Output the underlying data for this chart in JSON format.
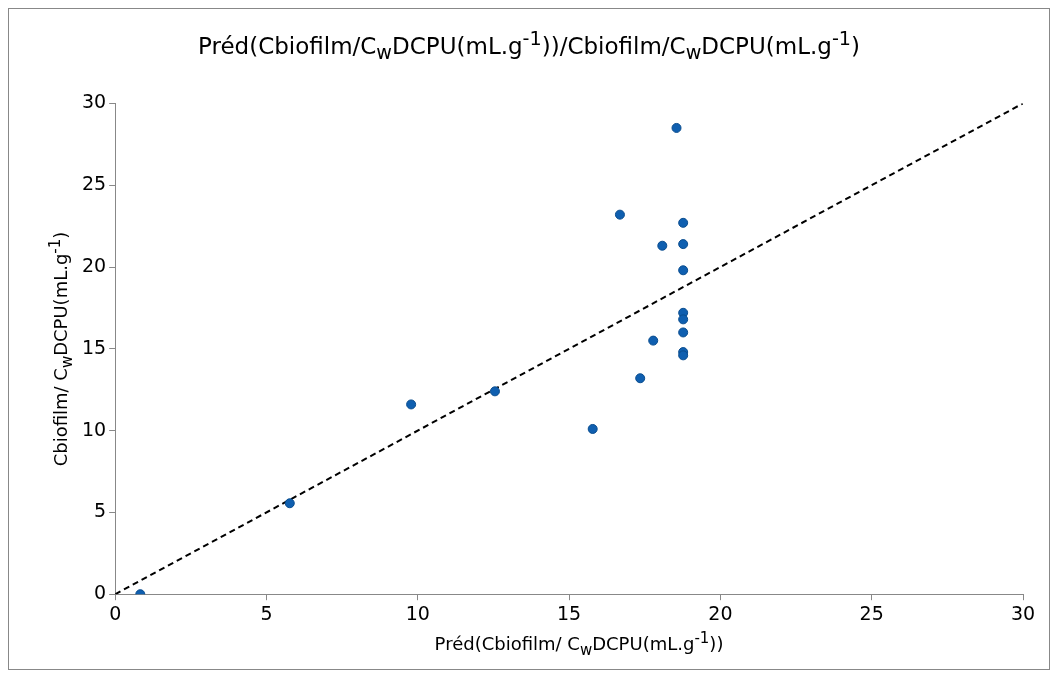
{
  "chart_data": {
    "type": "scatter",
    "title": "Préd(Cbiofilm/C$_{w}$DCPU(mL.g$^{-1}$))/Cbiofilm/C$_{w}$DCPU(mL.g$^{-1}$)",
    "xlabel": "Préd(Cbiofilm/ C$_{w}$DCPU(mL.g$^{-1}$))",
    "ylabel": "Cbiofilm/ C$_{w}$DCPU(mL.g$^{-1}$)",
    "xlim": [
      0,
      30
    ],
    "ylim": [
      0,
      30
    ],
    "xticks": [
      0,
      5,
      10,
      15,
      20,
      25,
      30
    ],
    "yticks": [
      0,
      5,
      10,
      15,
      20,
      25,
      30
    ],
    "grid": false,
    "legend": false,
    "marker": "circle",
    "series": [
      {
        "color": "#0f5fb0",
        "x": [
          0.83,
          5.77,
          9.78,
          12.55,
          15.78,
          16.68,
          17.35,
          17.78,
          18.08,
          18.55,
          18.77,
          18.77,
          18.77,
          18.77,
          18.77,
          18.77,
          18.77,
          18.77
        ],
        "values": [
          0,
          5.56,
          11.6,
          12.4,
          10.1,
          23.2,
          13.2,
          15.5,
          21.3,
          28.5,
          22.7,
          21.4,
          19.8,
          17.2,
          16.8,
          16.0,
          14.8,
          14.6
        ]
      },
      {
        "type": "line",
        "color": "#000000",
        "marker": "none",
        "line_style": "dashed",
        "x": [
          0,
          30
        ],
        "values": [
          0,
          30
        ]
      }
    ]
  }
}
